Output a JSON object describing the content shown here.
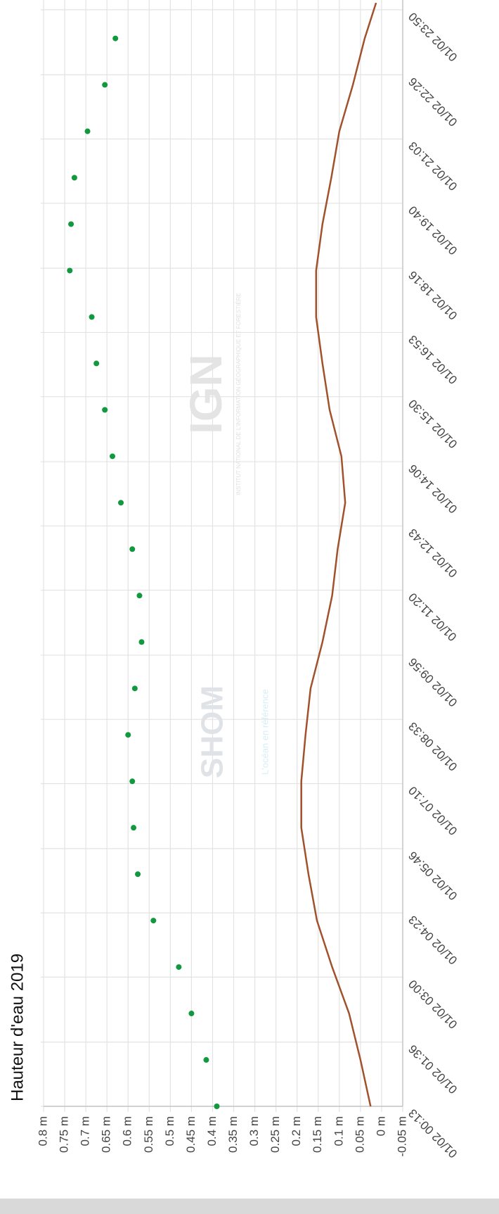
{
  "chart_data": {
    "type": "scatter-line",
    "title": "Hauteur d'eau 2019",
    "xlim": [
      "01/02 00:13",
      "01/02 23:59"
    ],
    "xticks": [
      "01/02 00:13",
      "01/02 01:36",
      "01/02 03:00",
      "01/02 04:23",
      "01/02 05:46",
      "01/02 07:10",
      "01/02 08:33",
      "01/02 09:56",
      "01/02 11:20",
      "01/02 12:43",
      "01/02 14:06",
      "01/02 15:30",
      "01/02 16:53",
      "01/02 18:16",
      "01/02 19:40",
      "01/02 21:03",
      "01/02 22:26",
      "01/02 23:50"
    ],
    "ylim": [
      -0.05,
      0.8
    ],
    "yticks": [
      {
        "value": 0.8,
        "label": "0.8 m"
      },
      {
        "value": 0.75,
        "label": "0.75 m"
      },
      {
        "value": 0.7,
        "label": "0.7 m"
      },
      {
        "value": 0.65,
        "label": "0.65 m"
      },
      {
        "value": 0.6,
        "label": "0.6 m"
      },
      {
        "value": 0.55,
        "label": "0.55 m"
      },
      {
        "value": 0.5,
        "label": "0.5 m"
      },
      {
        "value": 0.45,
        "label": "0.45 m"
      },
      {
        "value": 0.4,
        "label": "0.4 m"
      },
      {
        "value": 0.35,
        "label": "0.35 m"
      },
      {
        "value": 0.3,
        "label": "0.3 m"
      },
      {
        "value": 0.25,
        "label": "0.25 m"
      },
      {
        "value": 0.2,
        "label": "0.2 m"
      },
      {
        "value": 0.15,
        "label": "0.15 m"
      },
      {
        "value": 0.1,
        "label": "0.1 m"
      },
      {
        "value": 0.05,
        "label": "0.05 m"
      },
      {
        "value": 0,
        "label": "0 m"
      },
      {
        "value": -0.05,
        "label": "-0.05 m"
      }
    ],
    "grid": true,
    "series": [
      {
        "type": "scatter",
        "color": "#12993f",
        "x": [
          "01/02 00:13",
          "01/02 01:13",
          "01/02 02:13",
          "01/02 03:13",
          "01/02 04:13",
          "01/02 05:13",
          "01/02 06:13",
          "01/02 07:13",
          "01/02 08:13",
          "01/02 09:13",
          "01/02 10:13",
          "01/02 11:13",
          "01/02 12:13",
          "01/02 13:13",
          "01/02 14:13",
          "01/02 15:13",
          "01/02 16:13",
          "01/02 17:13",
          "01/02 18:13",
          "01/02 19:13",
          "01/02 20:13",
          "01/02 21:13",
          "01/02 22:13",
          "01/02 23:13"
        ],
        "values": [
          0.39,
          0.415,
          0.45,
          0.48,
          0.54,
          0.577,
          0.587,
          0.59,
          0.6,
          0.584,
          0.568,
          0.573,
          0.59,
          0.617,
          0.637,
          0.655,
          0.675,
          0.686,
          0.738,
          0.735,
          0.727,
          0.696,
          0.655,
          0.63
        ]
      },
      {
        "type": "line",
        "color": "#a0522d",
        "x": [
          "01/02 00:13",
          "01/02 01:13",
          "01/02 02:13",
          "01/02 03:13",
          "01/02 04:13",
          "01/02 05:13",
          "01/02 06:13",
          "01/02 07:13",
          "01/02 08:13",
          "01/02 09:13",
          "01/02 10:13",
          "01/02 11:13",
          "01/02 12:13",
          "01/02 13:13",
          "01/02 14:13",
          "01/02 15:13",
          "01/02 16:13",
          "01/02 17:13",
          "01/02 18:13",
          "01/02 19:13",
          "01/02 20:13",
          "01/02 21:13",
          "01/02 22:13",
          "01/02 23:13",
          "01/02 23:59"
        ],
        "values": [
          0.026,
          0.05,
          0.077,
          0.117,
          0.153,
          0.173,
          0.19,
          0.19,
          0.18,
          0.168,
          0.14,
          0.117,
          0.104,
          0.086,
          0.095,
          0.123,
          0.14,
          0.155,
          0.155,
          0.14,
          0.119,
          0.1,
          0.068,
          0.04,
          0.013
        ]
      }
    ]
  },
  "watermarks": {
    "ign": "IGN",
    "ign_text": "INSTITUT NATIONAL DE L'INFORMATION GÉOGRAPHIQUE ET FORESTIÈRE",
    "shom": "SHOM",
    "shom_text": "L'océan en référence"
  }
}
